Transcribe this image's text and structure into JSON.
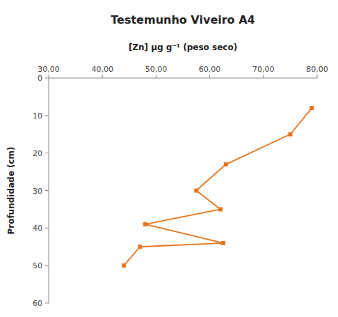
{
  "chart_data": {
    "type": "line",
    "title": "Testemunho Viveiro A4",
    "xlabel": "[Zn]  μg g⁻¹ (peso seco)",
    "ylabel": "Profundidade (cm)",
    "x": [
      79.0,
      75.0,
      63.0,
      57.5,
      62.0,
      48.0,
      62.5,
      47.0,
      44.0
    ],
    "values": [
      8,
      15,
      23,
      30,
      35,
      39,
      44,
      45,
      50
    ],
    "color": "#E8731A",
    "marker": "square",
    "xlim": [
      30,
      80
    ],
    "ylim": [
      60,
      0
    ],
    "xticks": [
      {
        "value": 30.0,
        "label": "30,00"
      },
      {
        "value": 40.0,
        "label": "40,00"
      },
      {
        "value": 50.0,
        "label": "50,00"
      },
      {
        "value": 60.0,
        "label": "60,00"
      },
      {
        "value": 70.0,
        "label": "70,00"
      },
      {
        "value": 80.0,
        "label": "80,00"
      }
    ],
    "yticks": [
      0,
      10,
      20,
      30,
      40,
      50,
      60
    ],
    "grid": false
  }
}
